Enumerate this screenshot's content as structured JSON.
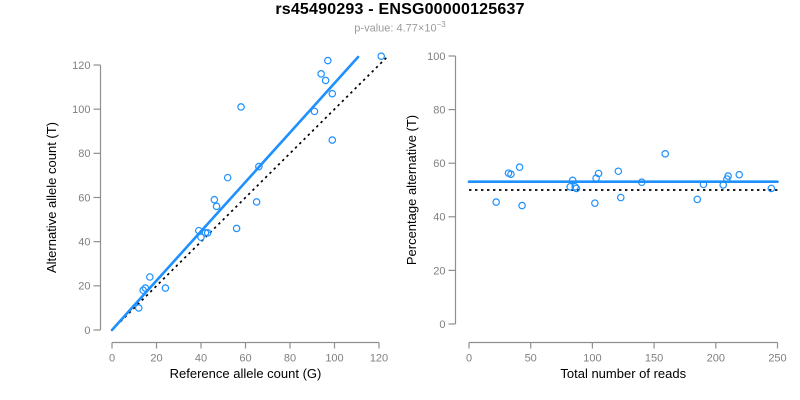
{
  "header": {
    "title": "rs45490293 - ENSG00000125637",
    "pvalue_label": "p-value: 4.77×10",
    "pvalue_exponent": "−3"
  },
  "colors": {
    "accent_blue": "#1E90FF",
    "identity_black": "#000000",
    "axis_gray": "#8f8f8f",
    "tick_label_gray": "#808080",
    "axis_label_black": "#000000",
    "subtitle_gray": "#9a9a9a"
  },
  "chart_data": [
    {
      "type": "scatter",
      "id": "allele-counts-scatter",
      "xlabel": "Reference allele count (G)",
      "ylabel": "Alternative allele count (T)",
      "xlim": [
        0,
        124
      ],
      "ylim": [
        0,
        124
      ],
      "xticks": [
        0,
        20,
        40,
        60,
        80,
        100,
        120
      ],
      "yticks": [
        0,
        20,
        40,
        60,
        80,
        100,
        120
      ],
      "grid": false,
      "points": [
        [
          12,
          10
        ],
        [
          14,
          18
        ],
        [
          15,
          19
        ],
        [
          17,
          24
        ],
        [
          24,
          19
        ],
        [
          39,
          45
        ],
        [
          40,
          42
        ],
        [
          42,
          44
        ],
        [
          43,
          44
        ],
        [
          46,
          59
        ],
        [
          47,
          56
        ],
        [
          52,
          69
        ],
        [
          56,
          46
        ],
        [
          58,
          101
        ],
        [
          65,
          58
        ],
        [
          66,
          74
        ],
        [
          91,
          99
        ],
        [
          94,
          116
        ],
        [
          96,
          113
        ],
        [
          97,
          122
        ],
        [
          99,
          86
        ],
        [
          99,
          107
        ],
        [
          121,
          124
        ]
      ],
      "regression_line": {
        "style": "solid",
        "from": [
          0,
          0
        ],
        "to": [
          110.6,
          123.6
        ]
      },
      "identity_line": {
        "style": "dotted",
        "from": [
          0,
          0
        ],
        "to": [
          123.6,
          123.6
        ]
      }
    },
    {
      "type": "scatter",
      "id": "percentage-vs-reads-scatter",
      "xlabel": "Total number of reads",
      "ylabel": "Percentage alternative (T)",
      "xlim": [
        0,
        250
      ],
      "ylim": [
        0,
        100
      ],
      "xticks": [
        0,
        50,
        100,
        150,
        200,
        250
      ],
      "yticks": [
        0,
        20,
        40,
        60,
        80,
        100
      ],
      "grid": false,
      "points": [
        [
          22,
          45.5
        ],
        [
          32,
          56.3
        ],
        [
          34,
          55.9
        ],
        [
          41,
          58.5
        ],
        [
          43,
          44.2
        ],
        [
          84,
          53.6
        ],
        [
          82,
          51.2
        ],
        [
          86,
          51.2
        ],
        [
          87,
          50.6
        ],
        [
          105,
          56.2
        ],
        [
          103,
          54.4
        ],
        [
          121,
          57.0
        ],
        [
          102,
          45.1
        ],
        [
          159,
          63.5
        ],
        [
          123,
          47.2
        ],
        [
          140,
          52.9
        ],
        [
          190,
          52.1
        ],
        [
          210,
          55.2
        ],
        [
          209,
          54.1
        ],
        [
          219,
          55.7
        ],
        [
          185,
          46.5
        ],
        [
          206,
          51.9
        ],
        [
          245,
          50.6
        ]
      ],
      "regression_line": {
        "style": "solid",
        "y": 53.1
      },
      "identity_line": {
        "style": "dotted",
        "y": 50
      }
    }
  ]
}
